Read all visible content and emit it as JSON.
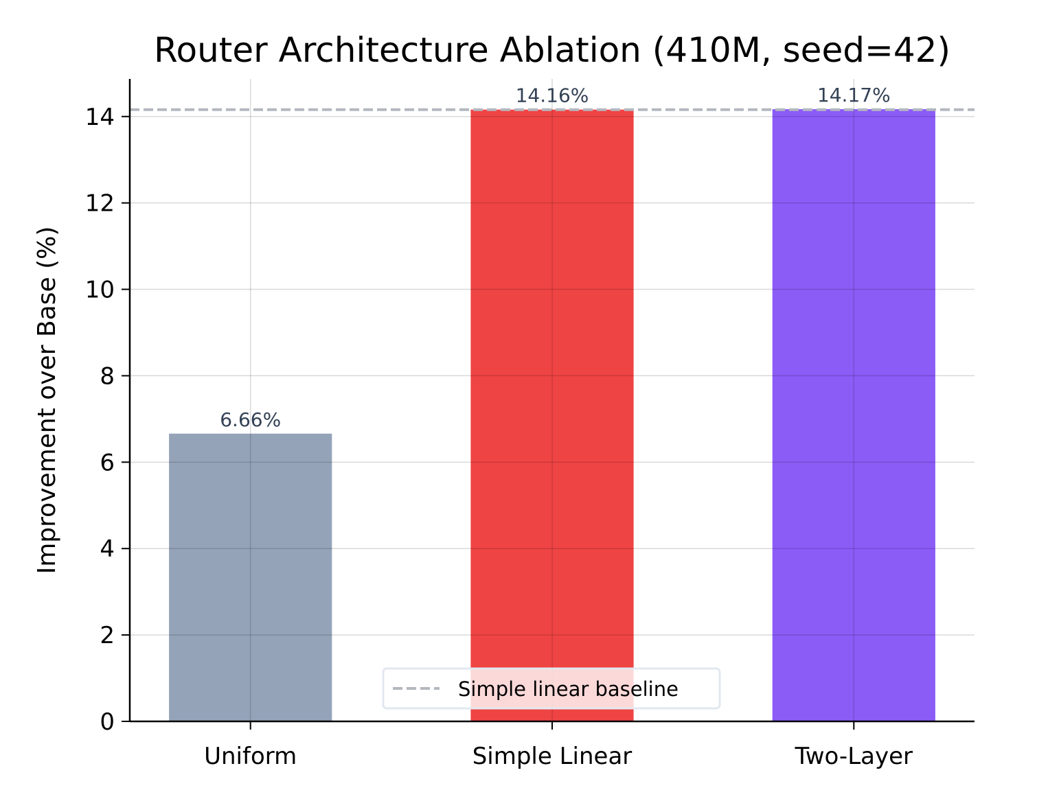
{
  "chart_data": {
    "type": "bar",
    "title": "Router Architecture Ablation (410M, seed=42)",
    "xlabel": "",
    "ylabel": "Improvement over Base (%)",
    "categories": [
      "Uniform",
      "Simple Linear",
      "Two-Layer"
    ],
    "values": [
      6.66,
      14.16,
      14.17
    ],
    "data_labels": [
      "6.66%",
      "14.16%",
      "14.17%"
    ],
    "colors": [
      "#94a3b8",
      "#ef4444",
      "#8b5cf6"
    ],
    "ylim": [
      0,
      14.87
    ],
    "yticks": [
      0,
      2,
      4,
      6,
      8,
      10,
      12,
      14
    ],
    "grid": true,
    "reference_line": {
      "value": 14.16,
      "label": "Simple linear baseline",
      "color": "#b4b8bf",
      "style": "dashed"
    },
    "legend": {
      "placement": "lower-center",
      "entries": [
        "Simple linear baseline"
      ]
    },
    "label_color": "#334155"
  }
}
